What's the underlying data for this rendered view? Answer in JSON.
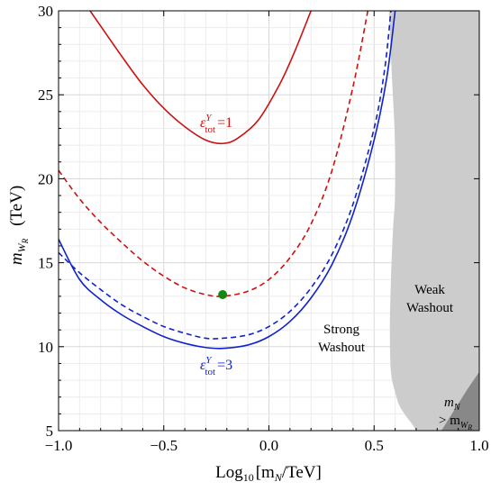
{
  "chart_data": {
    "type": "line",
    "xlabel_prefix": "Log",
    "xlabel_sub": "10",
    "xlabel_main": "[m",
    "xlabel_main_sub": "N",
    "xlabel_suffix": "/TeV]",
    "ylabel_main": "m",
    "ylabel_sub": "W",
    "ylabel_subsub": "R",
    "ylabel_unit": "(TeV)",
    "xlim": [
      -1.0,
      1.0
    ],
    "ylim": [
      5,
      30
    ],
    "x_ticks": [
      -1.0,
      -0.5,
      0.0,
      0.5,
      1.0
    ],
    "x_tick_labels": [
      "−1.0",
      "−0.5",
      "0.0",
      "0.5",
      "1.0"
    ],
    "y_ticks": [
      5,
      10,
      15,
      20,
      25,
      30
    ],
    "y_tick_labels": [
      "5",
      "10",
      "15",
      "20",
      "25",
      "30"
    ],
    "grid": true,
    "series": [
      {
        "style": "solid",
        "color": "#cc1111",
        "x": [
          -0.85,
          -0.7,
          -0.6,
          -0.5,
          -0.4,
          -0.3,
          -0.22,
          -0.15,
          -0.05,
          0.05,
          0.12,
          0.2
        ],
        "y": [
          30,
          27.3,
          25.6,
          24.2,
          23.1,
          22.3,
          22.1,
          22.4,
          23.5,
          25.6,
          27.5,
          30
        ]
      },
      {
        "style": "dashed",
        "color": "#cc1111",
        "x": [
          -1.0,
          -0.9,
          -0.8,
          -0.7,
          -0.6,
          -0.5,
          -0.4,
          -0.3,
          -0.22,
          -0.1,
          0.0,
          0.1,
          0.2,
          0.3,
          0.4,
          0.47
        ],
        "y": [
          20.5,
          18.8,
          17.4,
          16.2,
          15.1,
          14.2,
          13.5,
          13.1,
          13.0,
          13.3,
          14.0,
          15.3,
          17.3,
          20.5,
          25.5,
          30
        ]
      },
      {
        "style": "dashed",
        "color": "#1122cc",
        "x": [
          -1.0,
          -0.9,
          -0.8,
          -0.7,
          -0.6,
          -0.5,
          -0.4,
          -0.3,
          -0.22,
          -0.1,
          0.0,
          0.1,
          0.2,
          0.3,
          0.4,
          0.5,
          0.55,
          0.58
        ],
        "y": [
          15.6,
          14.4,
          13.4,
          12.5,
          11.8,
          11.2,
          10.8,
          10.5,
          10.5,
          10.7,
          11.2,
          12.1,
          13.5,
          15.5,
          18.5,
          23.0,
          26.5,
          30
        ]
      },
      {
        "style": "solid",
        "color": "#1122cc",
        "x": [
          -1.0,
          -0.9,
          -0.8,
          -0.7,
          -0.6,
          -0.5,
          -0.4,
          -0.3,
          -0.22,
          -0.1,
          0.0,
          0.1,
          0.2,
          0.3,
          0.4,
          0.5,
          0.56,
          0.6
        ],
        "y": [
          16.4,
          14.0,
          12.8,
          11.9,
          11.2,
          10.6,
          10.2,
          9.95,
          9.9,
          10.1,
          10.6,
          11.5,
          12.9,
          14.9,
          17.9,
          22.3,
          26.0,
          30
        ]
      }
    ],
    "point": {
      "x": -0.22,
      "y": 13.1,
      "color": "#118811"
    },
    "weak_region": {
      "color": "#cccccc",
      "boundary_x": [
        0.57,
        0.585,
        0.6,
        0.6,
        0.59,
        0.58,
        0.575,
        0.58,
        0.6,
        0.62,
        0.65,
        0.68,
        0.7
      ],
      "boundary_y": [
        30,
        26,
        22,
        19,
        17,
        14,
        11,
        8.5,
        7.3,
        6.5,
        5.9,
        5.4,
        5
      ]
    },
    "mn_region": {
      "color": "#888888",
      "boundary_x": [
        0.82,
        0.88,
        0.94,
        1.0
      ],
      "boundary_y": [
        5,
        6.2,
        7.4,
        8.5
      ]
    },
    "labels": {
      "red_label_main": "ε",
      "red_label_sup": "Y",
      "red_label_sub": "tot",
      "red_label_value": "=1",
      "blue_label_main": "ε",
      "blue_label_sup": "Y",
      "blue_label_sub": "tot",
      "blue_label_value": "=3",
      "strong_line1": "Strong",
      "strong_line2": "Washout",
      "weak_line1": "Weak",
      "weak_line2": "Washout",
      "mn_line1_main": "m",
      "mn_line1_sub": "N",
      "mn_line2_prefix": "> m",
      "mn_line2_sub": "W",
      "mn_line2_subsub": "R"
    }
  }
}
